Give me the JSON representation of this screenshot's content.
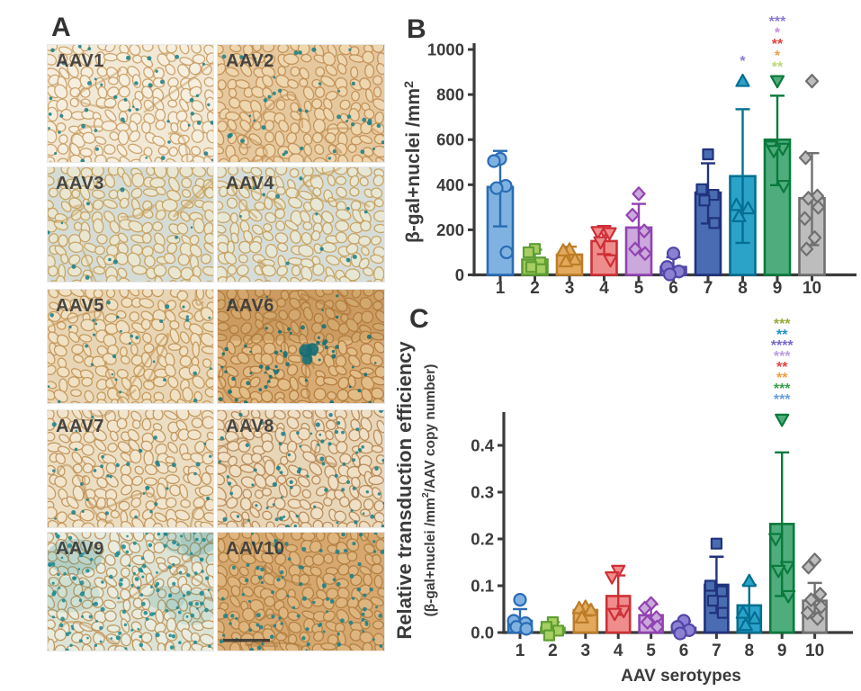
{
  "figure": {
    "panel_a_label": "A",
    "panel_b_label": "B",
    "panel_c_label": "C",
    "background": "#ffffff",
    "axis_color": "#3b3b3b",
    "text_color": "#3b3b3b"
  },
  "panel_a": {
    "description": "X-gal stained muscle cross-sections for AAV serotypes 1-10",
    "tiles": [
      {
        "label": "AAV1",
        "base": "#f1e8d5",
        "cell": "#f6efdf",
        "vein": "#c6985c",
        "dot": "#1e7f86",
        "dots": 46,
        "wash": 0,
        "cluster": false,
        "dark_band": false,
        "scalebar": false
      },
      {
        "label": "AAV2",
        "base": "#e6c89e",
        "cell": "#eed6ae",
        "vein": "#bd8a4e",
        "dot": "#1e7f86",
        "dots": 40,
        "wash": 0,
        "cluster": false,
        "dark_band": false,
        "scalebar": false
      },
      {
        "label": "AAV3",
        "base": "#d5dcd6",
        "cell": "#e9e6d2",
        "vein": "#c49b55",
        "dot": "#1e7f86",
        "dots": 10,
        "wash": 0,
        "cluster": false,
        "dark_band": false,
        "scalebar": false
      },
      {
        "label": "AAV4",
        "base": "#d6ddd8",
        "cell": "#e7e7d6",
        "vein": "#c49a52",
        "dot": "#1e7f86",
        "dots": 12,
        "wash": 0,
        "cluster": false,
        "dark_band": false,
        "scalebar": false
      },
      {
        "label": "AAV5",
        "base": "#e8d5b5",
        "cell": "#f0e1c4",
        "vein": "#bf8f4e",
        "dot": "#1e7f86",
        "dots": 30,
        "wash": 0,
        "cluster": false,
        "dark_band": false,
        "scalebar": false
      },
      {
        "label": "AAV6",
        "base": "#d8ab74",
        "cell": "#e3bd88",
        "vein": "#ad7636",
        "dot": "#156e74",
        "dots": 60,
        "wash": 0,
        "cluster": true,
        "dark_band": true,
        "scalebar": false
      },
      {
        "label": "AAV7",
        "base": "#ebdec3",
        "cell": "#f1e5cd",
        "vein": "#bd8d50",
        "dot": "#1e7f86",
        "dots": 36,
        "wash": 0,
        "cluster": false,
        "dark_band": false,
        "scalebar": false
      },
      {
        "label": "AAV8",
        "base": "#e8d6b8",
        "cell": "#efdfc5",
        "vein": "#b2804a",
        "dot": "#1e7f86",
        "dots": 72,
        "wash": 0,
        "cluster": false,
        "dark_band": false,
        "scalebar": false
      },
      {
        "label": "AAV9",
        "base": "#dde4d6",
        "cell": "#e9ecdf",
        "vein": "#bb8d50",
        "dot": "#1f8a8f",
        "dots": 135,
        "wash": 0.2,
        "cluster": false,
        "dark_band": false,
        "scalebar": false
      },
      {
        "label": "AAV10",
        "base": "#d6a76e",
        "cell": "#dfb57f",
        "vein": "#ab7a3c",
        "dot": "#1e7f86",
        "dots": 95,
        "wash": 0,
        "cluster": false,
        "dark_band": false,
        "scalebar": true
      }
    ]
  },
  "chart_data": [
    {
      "id": "B",
      "type": "bar",
      "title": "",
      "ylabel": "β-gal+nuclei /mm²",
      "ylabel_lines": [
        {
          "parts": [
            {
              "t": "β-gal+nuclei /mm"
            },
            {
              "t": "2",
              "sup": true
            }
          ]
        }
      ],
      "xlabel": "",
      "categories": [
        "1",
        "2",
        "3",
        "4",
        "5",
        "6",
        "7",
        "8",
        "9",
        "10"
      ],
      "ylim": [
        0,
        1000
      ],
      "yticks": [
        0,
        200,
        400,
        600,
        800,
        1000
      ],
      "grid": false,
      "bars": [
        {
          "serotype": "1",
          "mean": 390,
          "err": [
            215,
            550
          ],
          "marker": "circle",
          "fill": "#7fb2e0",
          "stroke": "#2a6cb5",
          "points": [
            515,
            505,
            395,
            385,
            100
          ]
        },
        {
          "serotype": "2",
          "mean": 68,
          "err": [
            25,
            112
          ],
          "marker": "square",
          "fill": "#a6ce62",
          "stroke": "#5f9e33",
          "points": [
            115,
            100,
            55,
            35,
            25
          ]
        },
        {
          "serotype": "3",
          "mean": 90,
          "err": [
            58,
            125
          ],
          "marker": "triangle",
          "fill": "#e3aa5e",
          "stroke": "#bd7d28",
          "points": [
            112,
            108,
            68,
            60
          ]
        },
        {
          "serotype": "4",
          "mean": 150,
          "err": [
            92,
            205
          ],
          "marker": "triangle-down",
          "fill": "#ef8d8d",
          "stroke": "#cf2f36",
          "points": [
            195,
            190,
            185,
            145,
            65
          ]
        },
        {
          "serotype": "5",
          "mean": 210,
          "err": [
            105,
            315
          ],
          "marker": "diamond",
          "fill": "#cba9dc",
          "stroke": "#9243b2",
          "points": [
            360,
            265,
            195,
            115,
            95
          ]
        },
        {
          "serotype": "6",
          "mean": 35,
          "err": [
            0,
            78
          ],
          "marker": "circle",
          "fill": "#8c80d2",
          "stroke": "#5146a8",
          "points": [
            95,
            35,
            15,
            2
          ]
        },
        {
          "serotype": "7",
          "mean": 365,
          "err": [
            228,
            495
          ],
          "marker": "square",
          "fill": "#4a6cb2",
          "stroke": "#21337d",
          "points": [
            535,
            380,
            355,
            330,
            230
          ]
        },
        {
          "serotype": "8",
          "mean": 438,
          "err": [
            142,
            735
          ],
          "marker": "triangle",
          "fill": "#2ba3c8",
          "stroke": "#046f92",
          "points": [
            860,
            310,
            295,
            260
          ]
        },
        {
          "serotype": "9",
          "mean": 600,
          "err": [
            398,
            795
          ],
          "marker": "triangle-down",
          "fill": "#4fad7d",
          "stroke": "#0a7a3c",
          "points": [
            860,
            570,
            560,
            550,
            395
          ]
        },
        {
          "serotype": "10",
          "mean": 340,
          "err": [
            132,
            540
          ],
          "marker": "diamond",
          "fill": "#bdbdbd",
          "stroke": "#707070",
          "points": [
            860,
            520,
            350,
            340,
            300,
            250,
            165,
            115
          ]
        }
      ],
      "significance": [
        {
          "bar": "8",
          "stars": [
            {
              "text": "*",
              "color": "#8b7ad0"
            }
          ]
        },
        {
          "bar": "9",
          "stars": [
            {
              "text": "***",
              "color": "#8b7ad0"
            },
            {
              "text": "*",
              "color": "#c492d8"
            },
            {
              "text": "**",
              "color": "#e04343"
            },
            {
              "text": "*",
              "color": "#f09f43"
            },
            {
              "text": "**",
              "color": "#bcd878"
            }
          ]
        }
      ]
    },
    {
      "id": "C",
      "type": "bar",
      "title": "",
      "ylabel": "Relative transduction efficiency (β-gal+nuclei /mm²/AAV copy number)",
      "ylabel_lines": [
        {
          "parts": [
            {
              "t": "Relative transduction efficiency"
            }
          ]
        },
        {
          "parts": [
            {
              "t": "(β-gal+nuclei /mm"
            },
            {
              "t": "2",
              "sup": true
            },
            {
              "t": "/AAV copy number)"
            }
          ]
        }
      ],
      "xlabel": "AAV serotypes",
      "categories": [
        "1",
        "2",
        "3",
        "4",
        "5",
        "6",
        "7",
        "8",
        "9",
        "10"
      ],
      "ylim": [
        0,
        0.47
      ],
      "yticks": [
        0,
        0.1,
        0.2,
        0.3,
        0.4
      ],
      "grid": false,
      "bars": [
        {
          "serotype": "1",
          "mean": 0.025,
          "err": [
            0.005,
            0.05
          ],
          "marker": "circle",
          "fill": "#7fb2e0",
          "stroke": "#2a6cb5",
          "points": [
            0.07,
            0.025,
            0.02,
            0.012,
            0.008
          ]
        },
        {
          "serotype": "2",
          "mean": 0.01,
          "err": [
            0.0,
            0.022
          ],
          "marker": "square",
          "fill": "#a6ce62",
          "stroke": "#5f9e33",
          "points": [
            0.022,
            0.012,
            0.004,
            -0.006
          ]
        },
        {
          "serotype": "3",
          "mean": 0.048,
          "err": [
            0.036,
            0.058
          ],
          "marker": "triangle",
          "fill": "#e3aa5e",
          "stroke": "#bd7d28",
          "points": [
            0.055,
            0.052,
            0.048,
            0.032
          ]
        },
        {
          "serotype": "4",
          "mean": 0.078,
          "err": [
            0.038,
            0.122
          ],
          "marker": "triangle-down",
          "fill": "#ef8d8d",
          "stroke": "#cf2f36",
          "points": [
            0.132,
            0.118,
            0.046,
            0.04
          ]
        },
        {
          "serotype": "5",
          "mean": 0.037,
          "err": [
            0.015,
            0.06
          ],
          "marker": "diamond",
          "fill": "#cba9dc",
          "stroke": "#9243b2",
          "points": [
            0.062,
            0.052,
            0.032,
            0.022,
            0.012
          ]
        },
        {
          "serotype": "6",
          "mean": 0.01,
          "err": [
            0.0,
            0.024
          ],
          "marker": "circle",
          "fill": "#8c80d2",
          "stroke": "#5146a8",
          "points": [
            0.025,
            0.012,
            0.005,
            -0.002
          ]
        },
        {
          "serotype": "7",
          "mean": 0.102,
          "err": [
            0.042,
            0.162
          ],
          "marker": "square",
          "fill": "#4a6cb2",
          "stroke": "#21337d",
          "points": [
            0.19,
            0.1,
            0.088,
            0.068,
            0.042
          ]
        },
        {
          "serotype": "8",
          "mean": 0.058,
          "err": [
            0.022,
            0.102
          ],
          "marker": "triangle",
          "fill": "#2ba3c8",
          "stroke": "#046f92",
          "points": [
            0.11,
            0.042,
            0.03,
            0.016
          ]
        },
        {
          "serotype": "9",
          "mean": 0.232,
          "err": [
            0.078,
            0.385
          ],
          "marker": "triangle-down",
          "fill": "#4fad7d",
          "stroke": "#0a7a3c",
          "points": [
            0.455,
            0.2,
            0.14,
            0.132,
            0.078
          ]
        },
        {
          "serotype": "10",
          "mean": 0.068,
          "err": [
            0.032,
            0.106
          ],
          "marker": "diamond",
          "fill": "#bdbdbd",
          "stroke": "#707070",
          "points": [
            0.155,
            0.14,
            0.082,
            0.07,
            0.055,
            0.042,
            0.03
          ]
        }
      ],
      "significance": [
        {
          "bar": "9",
          "stars": [
            {
              "text": "***",
              "color": "#97ab3a"
            },
            {
              "text": "**",
              "color": "#2191c2"
            },
            {
              "text": "****",
              "color": "#7a68cf"
            },
            {
              "text": "***",
              "color": "#b99fdc"
            },
            {
              "text": "**",
              "color": "#e04343"
            },
            {
              "text": "**",
              "color": "#f09f43"
            },
            {
              "text": "***",
              "color": "#3b9e4c"
            },
            {
              "text": "***",
              "color": "#699fd8"
            }
          ]
        }
      ]
    }
  ]
}
